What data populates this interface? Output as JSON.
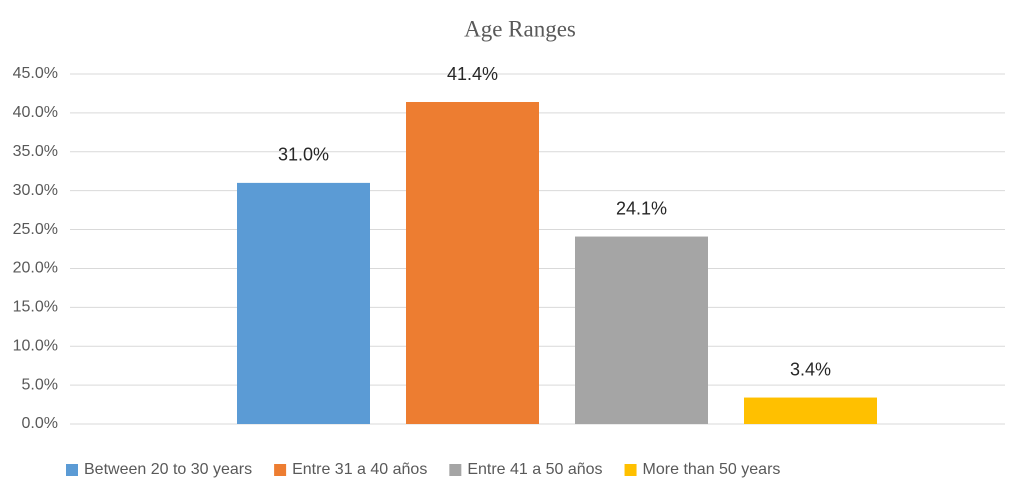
{
  "chart_data": {
    "type": "bar",
    "title": "Age Ranges",
    "categories": [
      null
    ],
    "series": [
      {
        "name": "Between 20 to 30 years",
        "color": "#5b9bd5",
        "values": [
          31.0
        ],
        "value_labels": [
          "31.0%"
        ]
      },
      {
        "name": "Entre 31 a 40 años",
        "color": "#ed7d31",
        "values": [
          41.4
        ],
        "value_labels": [
          "41.4%"
        ]
      },
      {
        "name": "Entre 41 a 50 años",
        "color": "#a5a5a5",
        "values": [
          24.1
        ],
        "value_labels": [
          "24.1%"
        ]
      },
      {
        "name": "More than 50 years",
        "color": "#ffc000",
        "values": [
          3.4
        ],
        "value_labels": [
          "3.4%"
        ]
      }
    ],
    "ylim": [
      0,
      45
    ],
    "yticks": [
      {
        "value": 0,
        "label": "0.0%"
      },
      {
        "value": 5,
        "label": "5.0%"
      },
      {
        "value": 10,
        "label": "10.0%"
      },
      {
        "value": 15,
        "label": "15.0%"
      },
      {
        "value": 20,
        "label": "20.0%"
      },
      {
        "value": 25,
        "label": "25.0%"
      },
      {
        "value": 30,
        "label": "30.0%"
      },
      {
        "value": 35,
        "label": "35.0%"
      },
      {
        "value": 40,
        "label": "40.0%"
      },
      {
        "value": 45,
        "label": "45.0%"
      }
    ],
    "grid": true,
    "legend": "bottom"
  }
}
